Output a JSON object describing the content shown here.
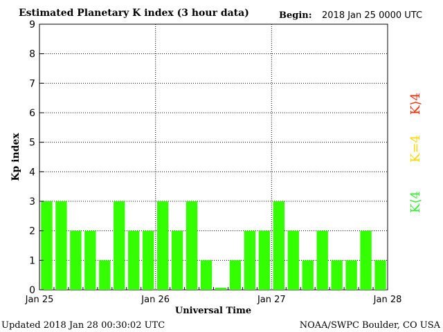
{
  "header": {
    "title": "Estimated Planetary K index (3 hour data)",
    "begin_label": "Begin:",
    "begin_value": "2018 Jan 25 0000 UTC"
  },
  "footer": {
    "updated": "Updated 2018 Jan 28 00:30:02 UTC",
    "source": "NOAA/SWPC Boulder, CO USA"
  },
  "legend": {
    "above": {
      "label": "K⟩4",
      "color": "#ff2a00"
    },
    "equal": {
      "label": "K=4",
      "color": "#ffd700"
    },
    "below": {
      "label": "K⟨4",
      "color": "#33ee33"
    }
  },
  "colors": {
    "bar_below_4": "#33ff00",
    "bar_equal_4": "#ffd700",
    "bar_above_4": "#ff2a00",
    "grid": "#000000"
  },
  "chart_data": {
    "type": "bar",
    "title": "Estimated Planetary K index (3 hour data)",
    "xlabel": "Universal Time",
    "ylabel": "Kp index",
    "ylim": [
      0,
      9
    ],
    "yticks": [
      "0",
      "1",
      "2",
      "3",
      "4",
      "5",
      "6",
      "7",
      "8",
      "9"
    ],
    "xticks": [
      "Jan 25",
      "Jan 26",
      "Jan 27",
      "Jan 28"
    ],
    "grid": true,
    "interval_hours": 3,
    "values": [
      3,
      3,
      2,
      2,
      1,
      3,
      2,
      2,
      3,
      2,
      3,
      1,
      0,
      1,
      2,
      2,
      3,
      2,
      1,
      2,
      1,
      1,
      2,
      1
    ]
  }
}
